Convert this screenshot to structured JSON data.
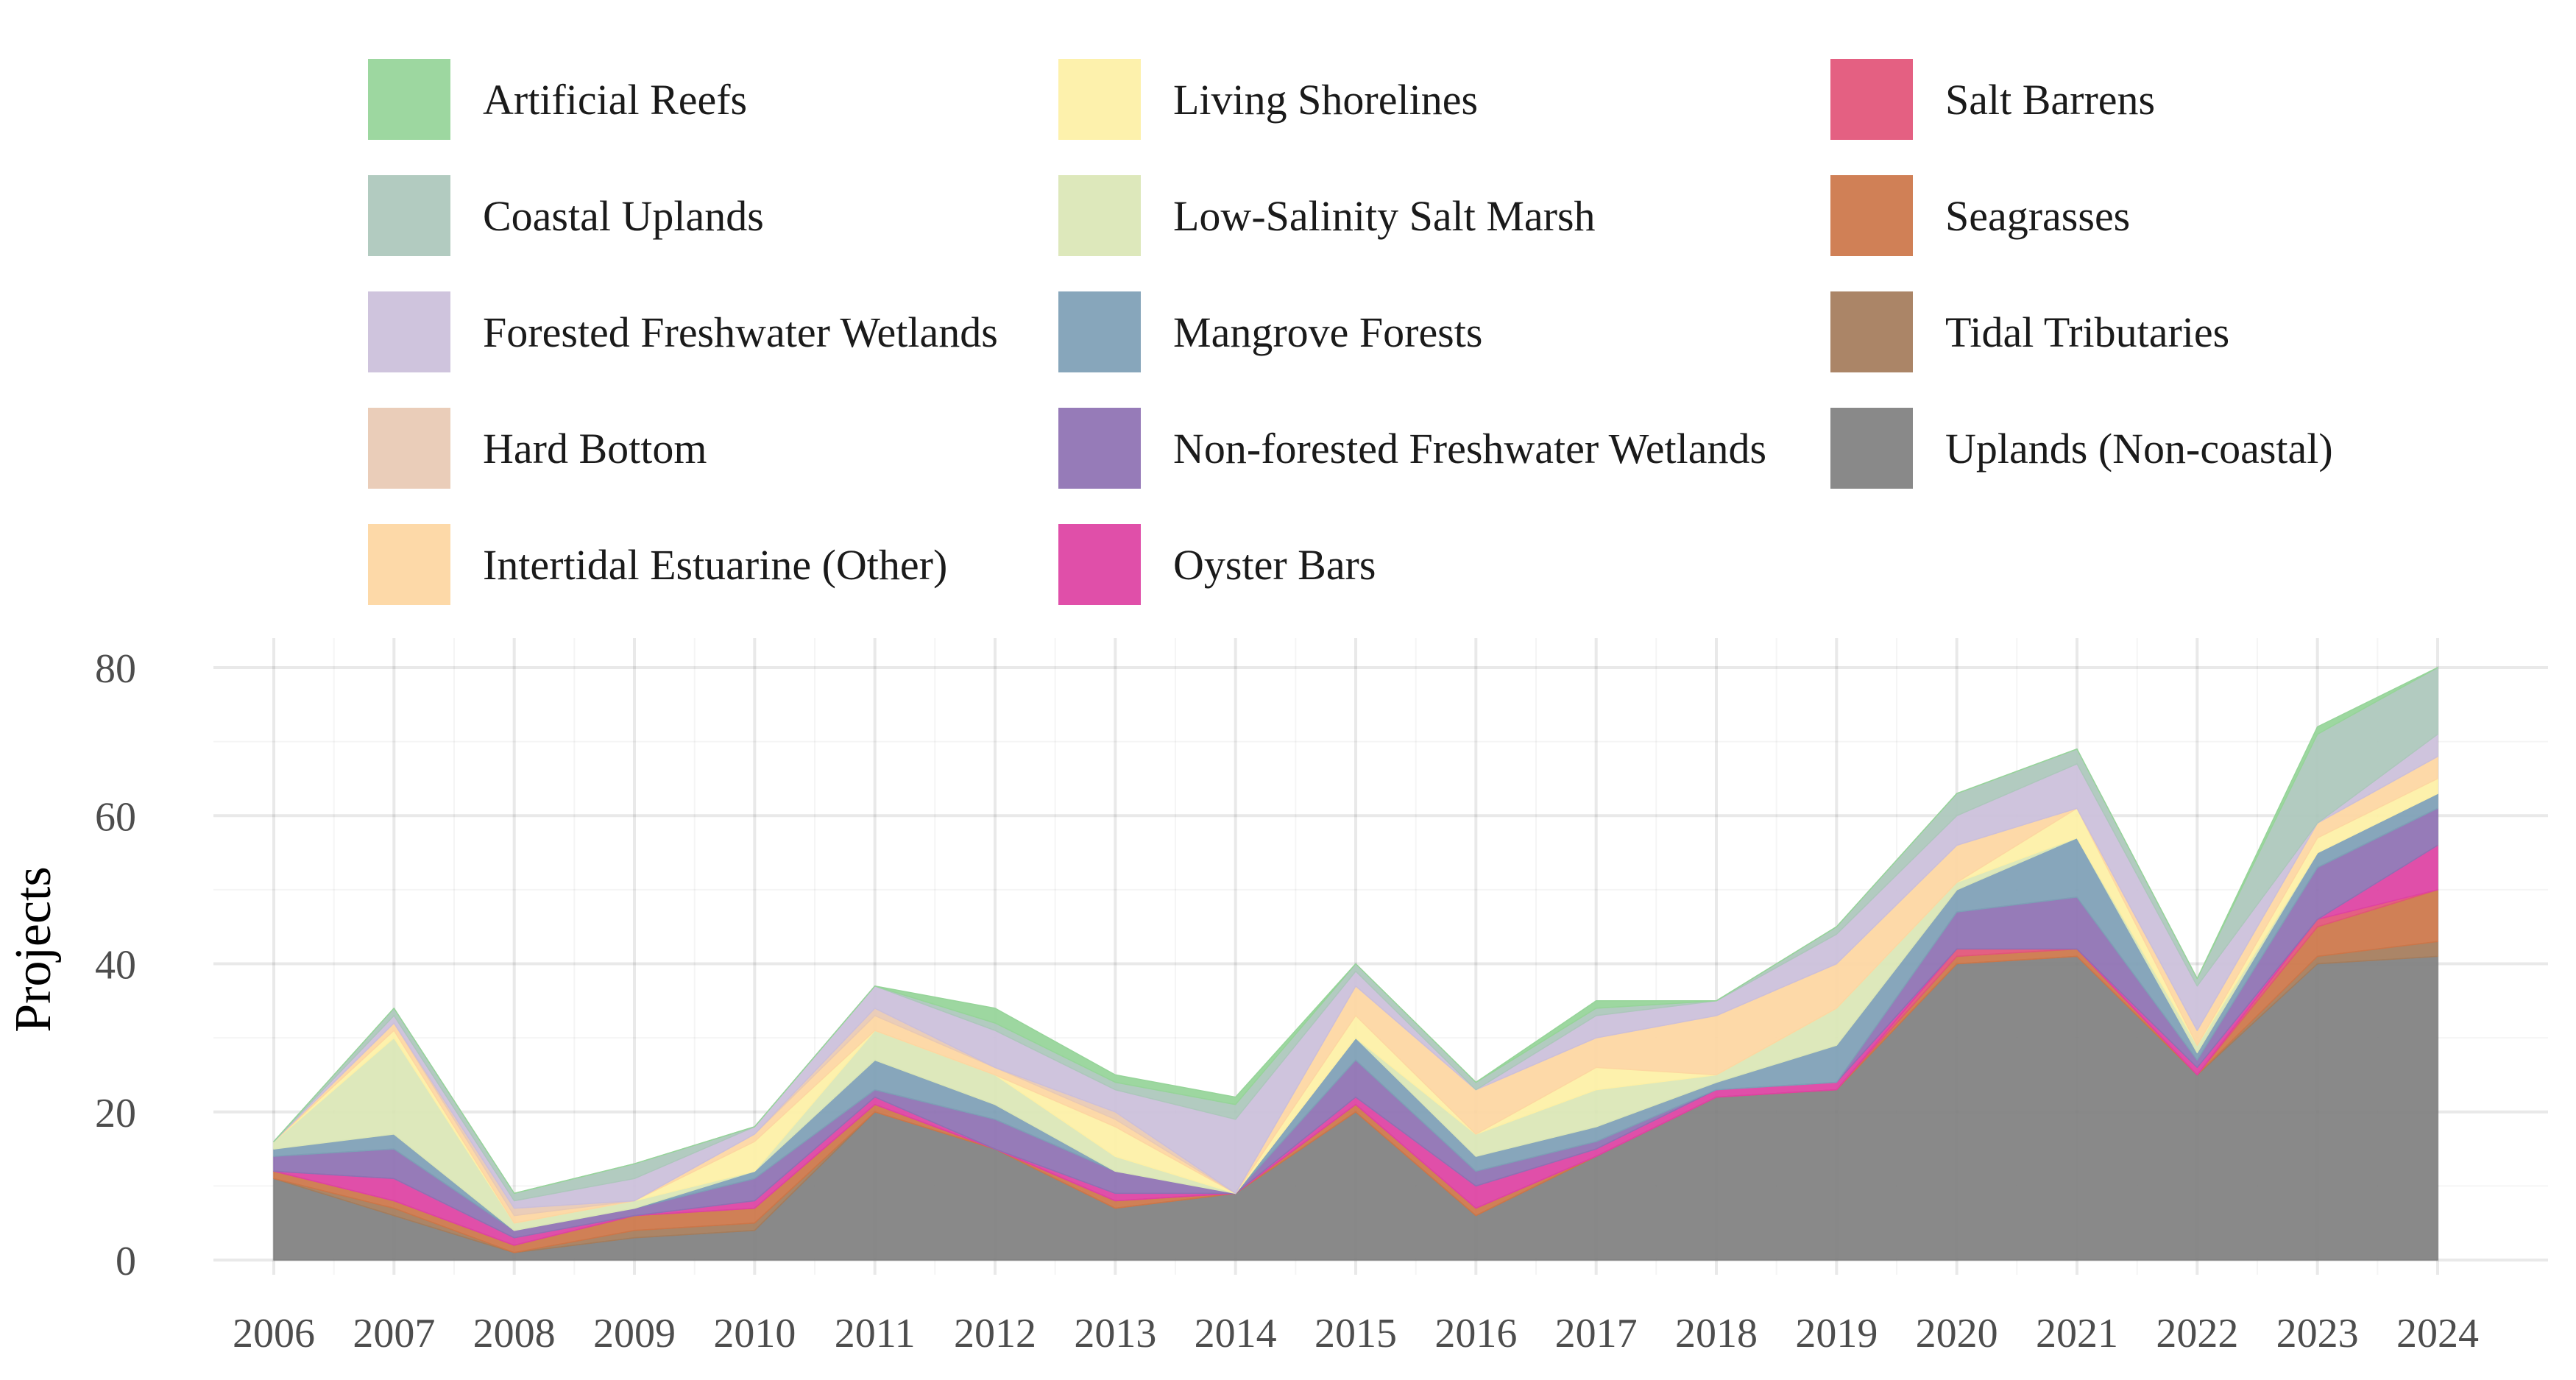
{
  "chart_data": {
    "type": "area",
    "stacked": true,
    "title": "",
    "xlabel": "",
    "ylabel": "Projects",
    "ylim": [
      0,
      85
    ],
    "xlim": [
      2006,
      2024
    ],
    "yticks": [
      0,
      20,
      40,
      60,
      80
    ],
    "grid": true,
    "legend_position": "top",
    "x": [
      2006,
      2007,
      2008,
      2009,
      2010,
      2011,
      2012,
      2013,
      2014,
      2015,
      2016,
      2017,
      2018,
      2019,
      2020,
      2021,
      2022,
      2023,
      2024
    ],
    "legend_order": [
      "Artificial Reefs",
      "Coastal Uplands",
      "Forested Freshwater Wetlands",
      "Hard Bottom",
      "Intertidal Estuarine (Other)",
      "Living Shorelines",
      "Low-Salinity Salt Marsh",
      "Mangrove Forests",
      "Non-forested Freshwater Wetlands",
      "Oyster Bars",
      "Salt Barrens",
      "Seagrasses",
      "Tidal Tributaries",
      "Uplands (Non-coastal)"
    ],
    "series": [
      {
        "name": "Uplands (Non-coastal)",
        "color": "#808080",
        "values": [
          11,
          6,
          1,
          3,
          4,
          20,
          15,
          7,
          9,
          20,
          6,
          14,
          22,
          23,
          40,
          41,
          25,
          40,
          41
        ]
      },
      {
        "name": "Tidal Tributaries",
        "color": "#A57C5B",
        "values": [
          0,
          1,
          0,
          1,
          1,
          0,
          0,
          0,
          0,
          0,
          0,
          0,
          0,
          0,
          0,
          0,
          0,
          1,
          2
        ]
      },
      {
        "name": "Seagrasses",
        "color": "#CC7649",
        "values": [
          1,
          1,
          1,
          2,
          2,
          1,
          0,
          1,
          0,
          1,
          1,
          0,
          0,
          0,
          1,
          1,
          0,
          4,
          7
        ]
      },
      {
        "name": "Salt Barrens",
        "color": "#E25479",
        "values": [
          0,
          0,
          0,
          0,
          0,
          0,
          0,
          0,
          0,
          0,
          0,
          0,
          0,
          0,
          1,
          0,
          0,
          1,
          0
        ]
      },
      {
        "name": "Oyster Bars",
        "color": "#DE42A3",
        "values": [
          0,
          3,
          1,
          0,
          1,
          1,
          0,
          1,
          0,
          1,
          3,
          1,
          1,
          1,
          0,
          0,
          1,
          0,
          6
        ]
      },
      {
        "name": "Non-forested Freshwater Wetlands",
        "color": "#8E71B3",
        "values": [
          2,
          4,
          1,
          1,
          3,
          1,
          4,
          3,
          0,
          5,
          2,
          1,
          0,
          0,
          5,
          7,
          1,
          7,
          5
        ]
      },
      {
        "name": "Mangrove Forests",
        "color": "#7E9FB6",
        "values": [
          1,
          2,
          0,
          0,
          1,
          4,
          2,
          0,
          0,
          3,
          2,
          2,
          1,
          5,
          3,
          8,
          1,
          2,
          2
        ]
      },
      {
        "name": "Low-Salinity Salt Marsh",
        "color": "#DAE6B6",
        "values": [
          1,
          13,
          1,
          1,
          0,
          4,
          4,
          2,
          0,
          0,
          3,
          5,
          1,
          5,
          1,
          0,
          1,
          0,
          0
        ]
      },
      {
        "name": "Living Shorelines",
        "color": "#FDF0A6",
        "values": [
          0,
          1,
          0,
          0,
          4,
          0,
          0,
          4,
          0,
          3,
          0,
          3,
          0,
          0,
          0,
          4,
          0,
          2,
          2
        ]
      },
      {
        "name": "Intertidal Estuarine (Other)",
        "color": "#FDD6A1",
        "values": [
          0,
          1,
          1,
          0,
          1,
          2,
          1,
          1,
          0,
          4,
          6,
          4,
          8,
          6,
          5,
          0,
          2,
          2,
          3
        ]
      },
      {
        "name": "Hard Bottom",
        "color": "#E8C9B4",
        "values": [
          0,
          0,
          1,
          0,
          0,
          1,
          0,
          1,
          0,
          0,
          0,
          0,
          0,
          0,
          0,
          0,
          0,
          0,
          0
        ]
      },
      {
        "name": "Forested Freshwater Wetlands",
        "color": "#CBBFDA",
        "values": [
          0,
          1,
          1,
          3,
          1,
          3,
          5,
          3,
          10,
          2,
          0,
          3,
          2,
          4,
          4,
          6,
          6,
          0,
          3
        ]
      },
      {
        "name": "Coastal Uplands",
        "color": "#ACC7BB",
        "values": [
          0,
          1,
          1,
          2,
          0,
          0,
          1,
          1,
          2,
          1,
          1,
          1,
          0,
          1,
          3,
          2,
          1,
          12,
          9
        ]
      },
      {
        "name": "Artificial Reefs",
        "color": "#96D499",
        "values": [
          0,
          0,
          0,
          0,
          0,
          0,
          2,
          1,
          1,
          0,
          0,
          1,
          0,
          0,
          0,
          0,
          0,
          1,
          0
        ]
      }
    ]
  }
}
